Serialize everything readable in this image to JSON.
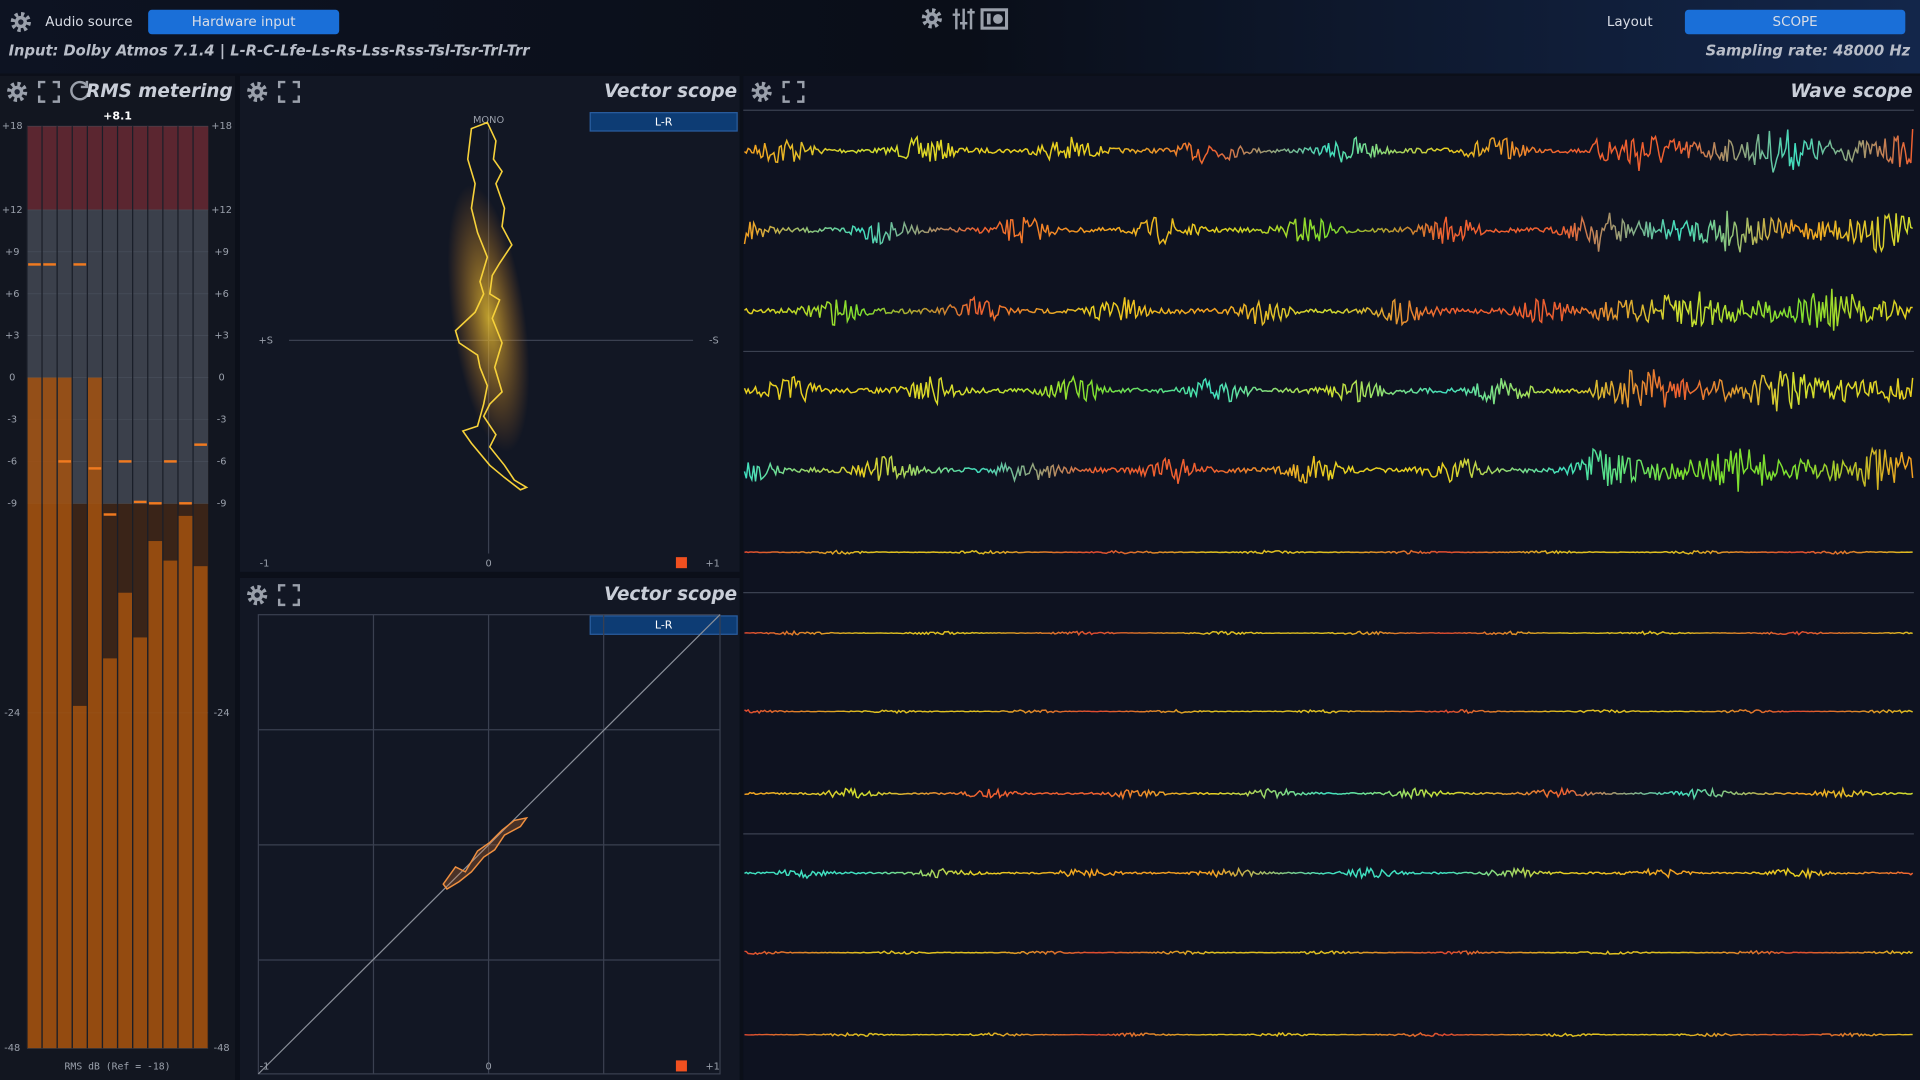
{
  "top_bar": {
    "audio_source_label": "Audio source",
    "hardware_input_button": "Hardware input",
    "layout_label": "Layout",
    "layout_button": "SCOPE",
    "input_info": "Input: Dolby Atmos 7.1.4 | L-R-C-Lfe-Ls-Rs-Lss-Rss-Tsl-Tsr-Trl-Trr",
    "sampling_rate": "Sampling rate: 48000 Hz"
  },
  "rms_panel": {
    "title": "RMS metering",
    "peak_label": "+8.1",
    "footer": "RMS dB (Ref = -18)",
    "ylim": [
      -48,
      18
    ],
    "yticks": [
      {
        "value": 18,
        "label": "+18"
      },
      {
        "value": 12,
        "label": "+12"
      },
      {
        "value": 9,
        "label": "+9"
      },
      {
        "value": 6,
        "label": "+6"
      },
      {
        "value": 3,
        "label": "+3"
      },
      0,
      -3,
      -6,
      -9,
      -24,
      -48
    ],
    "levels": [
      0,
      0,
      0,
      -23.5,
      0,
      -20.1,
      -15.4,
      -18.6,
      -11.7,
      -13.1,
      -9.9,
      -13.5
    ],
    "peaks": [
      8.1,
      8.1,
      -6,
      8.1,
      -6.5,
      -9.8,
      -6,
      -8.9,
      -9,
      -6,
      -9,
      -4.8
    ]
  },
  "vector_scope_1": {
    "title": "Vector scope",
    "mode_button": "L-R",
    "top_label": "MONO",
    "left_label": "+S",
    "right_label": "-S",
    "bottom_labels": [
      "-1",
      "0",
      "+1"
    ]
  },
  "vector_scope_2": {
    "title": "Vector scope",
    "mode_button": "L-R",
    "bottom_labels": [
      "-1",
      "0",
      "+1"
    ]
  },
  "wave_scope": {
    "title": "Wave scope"
  }
}
